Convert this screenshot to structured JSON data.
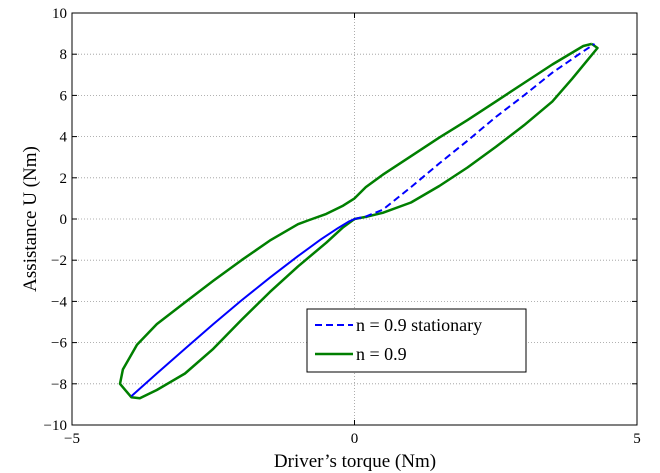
{
  "chart_data": {
    "type": "line",
    "xlabel": "Driver’s torque (Nm)",
    "ylabel": "Assistance U (Nm)",
    "xlim": [
      -5,
      5
    ],
    "ylim": [
      -10,
      10
    ],
    "xticks": [
      -5,
      0,
      5
    ],
    "yticks": [
      -10,
      -8,
      -6,
      -4,
      -2,
      0,
      2,
      4,
      6,
      8,
      10
    ],
    "grid": true,
    "legend_position": "lower-right",
    "series": [
      {
        "name": "n = 0.9 stationary",
        "color": "#0000ff",
        "style": "dashed-right-solid-left",
        "x": [
          -3.95,
          -3.5,
          -3.0,
          -2.5,
          -2.0,
          -1.5,
          -1.0,
          -0.6,
          -0.3,
          -0.1,
          0.0,
          0.2,
          0.5,
          1.0,
          1.5,
          2.0,
          2.5,
          3.0,
          3.5,
          4.0,
          4.25
        ],
        "y": [
          -8.6,
          -7.5,
          -6.3,
          -5.1,
          -3.95,
          -2.85,
          -1.8,
          -1.0,
          -0.45,
          -0.12,
          0.0,
          0.12,
          0.45,
          1.55,
          2.7,
          3.8,
          4.95,
          6.0,
          7.1,
          8.05,
          8.5
        ]
      },
      {
        "name": "n = 0.9",
        "color": "#007f00",
        "style": "solid",
        "x": [
          4.2,
          4.05,
          3.5,
          3.0,
          2.5,
          2.0,
          1.5,
          1.0,
          0.5,
          0.2,
          0.0,
          -0.2,
          -0.5,
          -0.8,
          -1.0,
          -1.5,
          -2.0,
          -2.5,
          -3.0,
          -3.5,
          -3.85,
          -4.1,
          -4.15,
          -3.95,
          -3.8,
          -3.5,
          -3.0,
          -2.5,
          -2.0,
          -1.5,
          -1.0,
          -0.5,
          -0.2,
          0.0,
          0.2,
          0.5,
          1.0,
          1.5,
          2.0,
          2.5,
          3.0,
          3.5,
          3.85,
          4.15,
          4.3,
          4.2
        ],
        "y": [
          8.5,
          8.4,
          7.5,
          6.6,
          5.7,
          4.8,
          3.95,
          3.05,
          2.15,
          1.55,
          1.0,
          0.65,
          0.25,
          -0.05,
          -0.25,
          -1.05,
          -2.0,
          -3.0,
          -4.05,
          -5.1,
          -6.1,
          -7.3,
          -8.0,
          -8.65,
          -8.7,
          -8.3,
          -7.5,
          -6.3,
          -4.9,
          -3.55,
          -2.3,
          -1.15,
          -0.4,
          0.0,
          0.1,
          0.3,
          0.8,
          1.6,
          2.5,
          3.5,
          4.55,
          5.7,
          6.8,
          7.8,
          8.3,
          8.5
        ]
      }
    ]
  }
}
